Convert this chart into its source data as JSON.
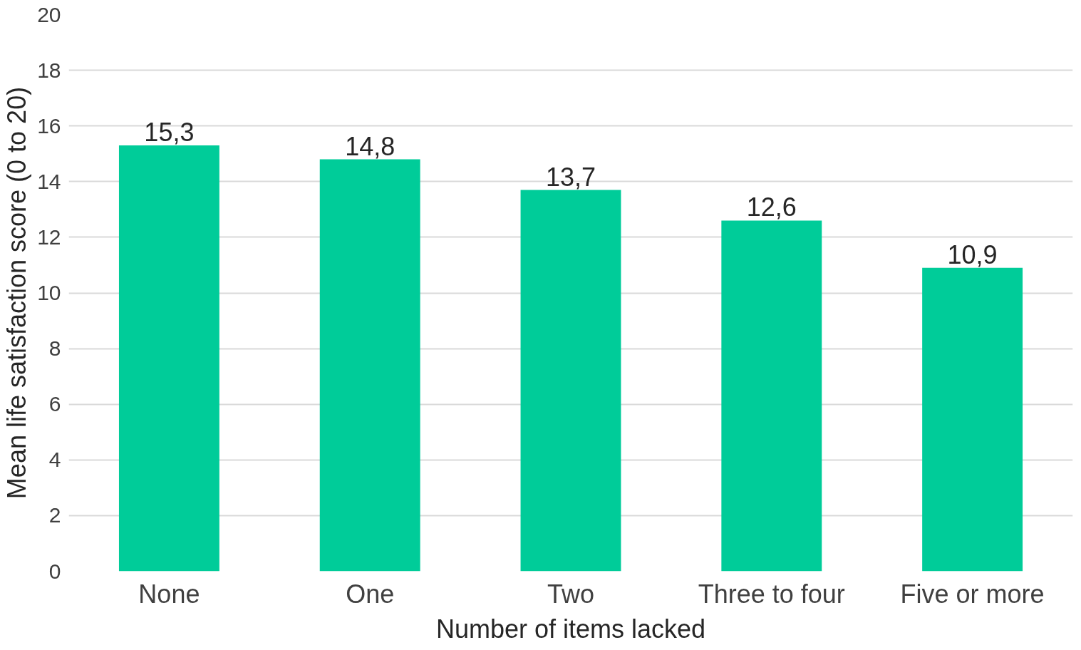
{
  "chart_data": {
    "type": "bar",
    "xlabel": "Number of items lacked",
    "ylabel": "Mean life satisfaction score (0 to 20)",
    "categories": [
      "None",
      "One",
      "Two",
      "Three to four",
      "Five or more"
    ],
    "values": [
      15.3,
      14.8,
      13.7,
      12.6,
      10.9
    ],
    "value_labels": [
      "15,3",
      "14,8",
      "13,7",
      "12,6",
      "10,9"
    ],
    "color": "#00cc99",
    "ylim": [
      0,
      20
    ],
    "yticks": [
      0,
      2,
      4,
      6,
      8,
      10,
      12,
      14,
      16,
      18,
      20
    ],
    "grid": "y"
  }
}
